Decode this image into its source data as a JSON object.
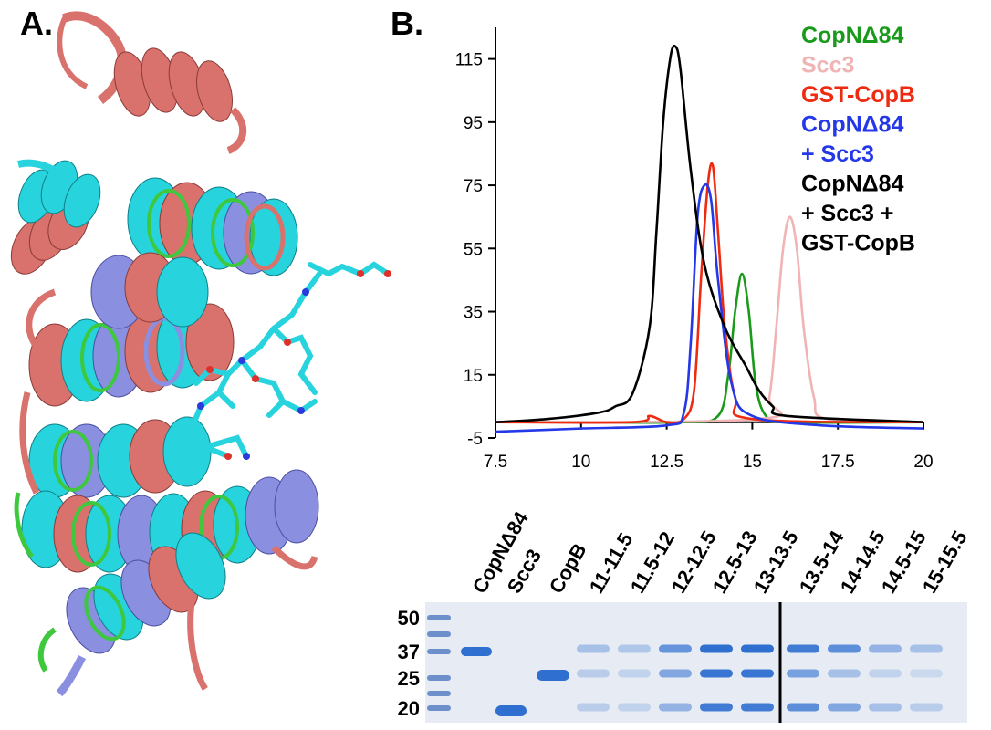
{
  "panels": {
    "a_label": "A.",
    "b_label": "B."
  },
  "chart_data": {
    "type": "line",
    "title": "",
    "xlabel": "",
    "ylabel": "",
    "xlim": [
      7.5,
      20
    ],
    "ylim": [
      -5,
      125
    ],
    "x_ticks": [
      "7.5",
      "10",
      "12.5",
      "15",
      "17.5",
      "20"
    ],
    "y_ticks": [
      "115",
      "95",
      "75",
      "55",
      "35",
      "15",
      "-5"
    ],
    "legend_placement": "top-right",
    "legend": [
      {
        "lines": [
          "CopNΔ84"
        ],
        "color": "#1a9a1a"
      },
      {
        "lines": [
          "Scc3"
        ],
        "color": "#f0b4b4"
      },
      {
        "lines": [
          "GST-CopB"
        ],
        "color": "#ee2a10"
      },
      {
        "lines": [
          "CopNΔ84",
          "+ Scc3"
        ],
        "color": "#2438e8"
      },
      {
        "lines": [
          "CopNΔ84",
          "+ Scc3 +",
          "GST-CopB"
        ],
        "color": "#000000"
      }
    ],
    "series": [
      {
        "color": "#1a9a1a",
        "x": [
          7.5,
          10,
          13,
          14,
          14.3,
          14.5,
          14.7,
          14.9,
          15.1,
          15.4,
          16,
          20
        ],
        "y": [
          0,
          0,
          0,
          2,
          15,
          35,
          47,
          35,
          12,
          2,
          0,
          0
        ]
      },
      {
        "color": "#f0b4b4",
        "x": [
          7.5,
          15.2,
          15.5,
          15.7,
          15.9,
          16.1,
          16.3,
          16.5,
          16.8,
          17.2,
          20
        ],
        "y": [
          0,
          1,
          8,
          30,
          55,
          65,
          55,
          30,
          8,
          1,
          0
        ]
      },
      {
        "color": "#ee2a10",
        "x": [
          7.5,
          11.5,
          12,
          12.5,
          13,
          13.3,
          13.5,
          13.7,
          13.85,
          14,
          14.2,
          14.5,
          15,
          20
        ],
        "y": [
          0,
          0,
          2,
          0,
          1,
          10,
          45,
          75,
          81,
          60,
          30,
          8,
          1,
          0
        ]
      },
      {
        "color": "#2438e8",
        "x": [
          7.5,
          10,
          12.5,
          13,
          13.2,
          13.4,
          13.6,
          13.8,
          14,
          14.4,
          15,
          17,
          20
        ],
        "y": [
          -3,
          -2,
          -1,
          3,
          25,
          65,
          75,
          70,
          45,
          12,
          2,
          -1,
          -2
        ]
      },
      {
        "color": "#000000",
        "x": [
          7.5,
          9,
          10.5,
          11,
          11.5,
          12,
          12.2,
          12.4,
          12.6,
          12.75,
          12.9,
          13.2,
          13.6,
          14.2,
          14.8,
          15.2,
          15.6,
          16,
          20
        ],
        "y": [
          0,
          1,
          3,
          5,
          9,
          30,
          60,
          95,
          115,
          119,
          112,
          80,
          50,
          30,
          18,
          10,
          5,
          2,
          0
        ]
      }
    ]
  },
  "gel": {
    "mw_markers": [
      {
        "label": "50",
        "kda": 50
      },
      {
        "label": "37",
        "kda": 37
      },
      {
        "label": "25",
        "kda": 25
      },
      {
        "label": "20",
        "kda": 20
      }
    ],
    "lanes": [
      {
        "label": ""
      },
      {
        "label": "CopNΔ84"
      },
      {
        "label": "Scc3"
      },
      {
        "label": "CopB"
      },
      {
        "label": "11-11.5"
      },
      {
        "label": "11.5-12"
      },
      {
        "label": "12-12.5"
      },
      {
        "label": "12.5-13"
      },
      {
        "label": "13-13.5"
      },
      {
        "label": "13.5-14"
      },
      {
        "label": "14-14.5"
      },
      {
        "label": "14.5-15"
      },
      {
        "label": "15-15.5"
      }
    ]
  }
}
